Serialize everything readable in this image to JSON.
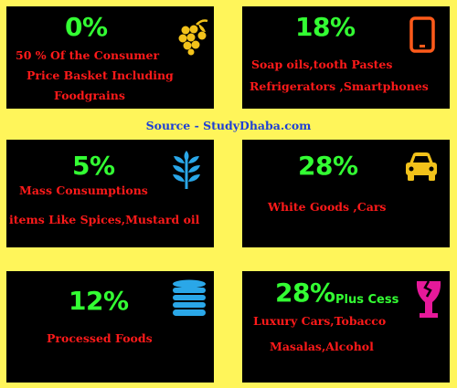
{
  "source": "Source - StudyDhaba.com",
  "cards": [
    {
      "rate": "0%",
      "lines": [
        "50 % Of the Consumer",
        "Price Basket  Including",
        "Foodgrains"
      ],
      "icon": "grapes-icon",
      "icon_color": "#f2c21a"
    },
    {
      "rate": "18%",
      "lines": [
        "Soap oils,tooth Pastes",
        "Refrigerators ,Smartphones"
      ],
      "icon": "tablet-icon",
      "icon_color": "#ff5a1a"
    },
    {
      "rate": "5%",
      "lines": [
        "Mass Consumptions",
        "items  Like Spices,Mustard oil"
      ],
      "icon": "wheat-icon",
      "icon_color": "#2aa7e8"
    },
    {
      "rate": "28%",
      "lines": [
        "White Goods ,Cars"
      ],
      "icon": "car-icon",
      "icon_color": "#f2c21a"
    },
    {
      "rate": "12%",
      "lines": [
        "Processed Foods"
      ],
      "icon": "coin-stack-icon",
      "icon_color": "#2aa7e8"
    },
    {
      "rate": "28%",
      "extra": "Plus Cess",
      "lines": [
        "Luxury Cars,Tobacco",
        "Masalas,Alcohol"
      ],
      "icon": "broken-glass-icon",
      "icon_color": "#e6199a"
    }
  ]
}
